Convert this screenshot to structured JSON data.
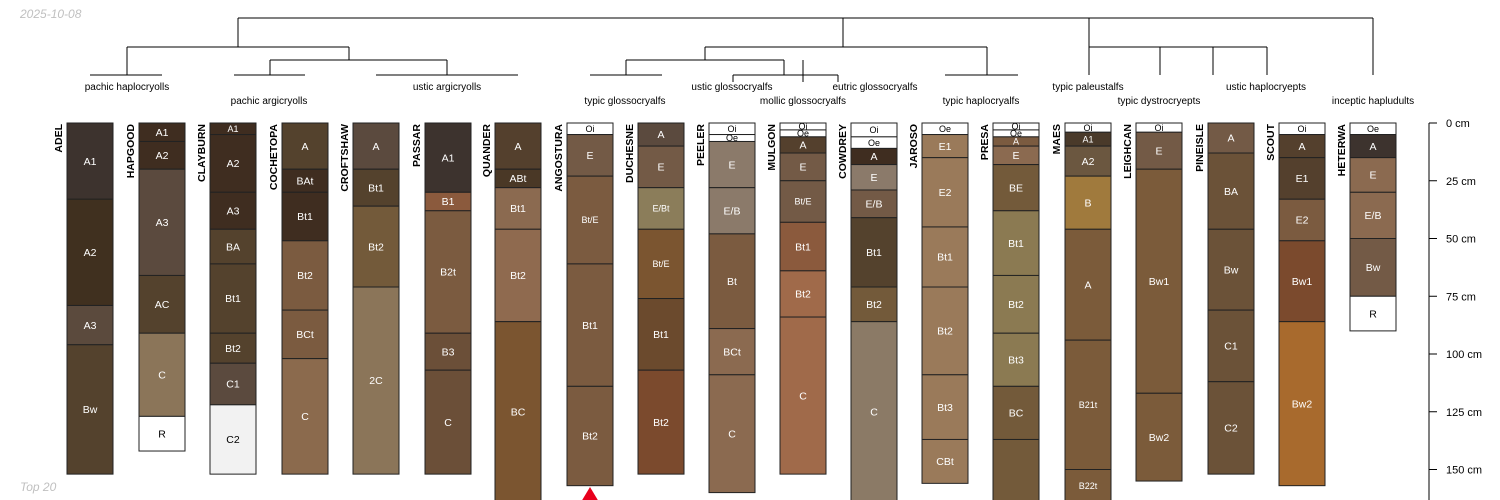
{
  "date_label": "2025-10-08",
  "footer_label": "Top 20",
  "depth_axis": {
    "unit": "cm",
    "ticks": [
      {
        "depth": 0,
        "label": "0 cm"
      },
      {
        "depth": 25,
        "label": "25 cm"
      },
      {
        "depth": 50,
        "label": "50 cm"
      },
      {
        "depth": 75,
        "label": "75 cm"
      },
      {
        "depth": 100,
        "label": "100 cm"
      },
      {
        "depth": 125,
        "label": "125 cm"
      },
      {
        "depth": 150,
        "label": "150 cm"
      }
    ]
  },
  "colors": {
    "line": "#000000",
    "horizon_border": "#222222",
    "marker": "#e8001c"
  },
  "classification_labels": [
    {
      "text": "pachic haplocryolls"
    },
    {
      "text": "pachic argicryolls"
    },
    {
      "text": "ustic argicryolls"
    },
    {
      "text": "typic glossocryalfs"
    },
    {
      "text": "ustic glossocryalfs"
    },
    {
      "text": "mollic glossocryalfs"
    },
    {
      "text": "eutric glossocryalfs"
    },
    {
      "text": "typic haplocryalfs"
    },
    {
      "text": "typic paleustalfs"
    },
    {
      "text": "typic dystrocryepts"
    },
    {
      "text": "ustic haplocryepts"
    },
    {
      "text": "inceptic hapludults"
    }
  ],
  "profiles": [
    {
      "name": "ADEL",
      "horizons": [
        {
          "name": "A1",
          "top": 0,
          "bottom": 33,
          "color": "#3d332e"
        },
        {
          "name": "A2",
          "top": 33,
          "bottom": 79,
          "color": "#40301f"
        },
        {
          "name": "A3",
          "top": 79,
          "bottom": 96,
          "color": "#5b4a3d"
        },
        {
          "name": "Bw",
          "top": 96,
          "bottom": 152,
          "color": "#54422d"
        }
      ]
    },
    {
      "name": "HAPGOOD",
      "horizons": [
        {
          "name": "A1",
          "top": 0,
          "bottom": 8,
          "color": "#3f2d20"
        },
        {
          "name": "A2",
          "top": 8,
          "bottom": 20,
          "color": "#3f2d20"
        },
        {
          "name": "A3",
          "top": 20,
          "bottom": 66,
          "color": "#5b4a3e"
        },
        {
          "name": "AC",
          "top": 66,
          "bottom": 91,
          "color": "#54422d"
        },
        {
          "name": "C",
          "top": 91,
          "bottom": 127,
          "color": "#8b7559"
        },
        {
          "name": "R",
          "top": 127,
          "bottom": 142,
          "color": "#ffffff"
        }
      ]
    },
    {
      "name": "CLAYBURN",
      "horizons": [
        {
          "name": "A1",
          "top": 0,
          "bottom": 5,
          "color": "#3f2d20"
        },
        {
          "name": "A2",
          "top": 5,
          "bottom": 30,
          "color": "#3f2d20"
        },
        {
          "name": "A3",
          "top": 30,
          "bottom": 46,
          "color": "#3f2d20"
        },
        {
          "name": "BA",
          "top": 46,
          "bottom": 61,
          "color": "#54422d"
        },
        {
          "name": "Bt1",
          "top": 61,
          "bottom": 91,
          "color": "#54422d"
        },
        {
          "name": "Bt2",
          "top": 91,
          "bottom": 104,
          "color": "#54422d"
        },
        {
          "name": "C1",
          "top": 104,
          "bottom": 122,
          "color": "#5b4a3e"
        },
        {
          "name": "C2",
          "top": 122,
          "bottom": 152,
          "color": "#f2f2f2"
        }
      ]
    },
    {
      "name": "COCHETOPA",
      "horizons": [
        {
          "name": "A",
          "top": 0,
          "bottom": 20,
          "color": "#54422d"
        },
        {
          "name": "BAt",
          "top": 20,
          "bottom": 30,
          "color": "#3f2d20"
        },
        {
          "name": "Bt1",
          "top": 30,
          "bottom": 51,
          "color": "#3f2d20"
        },
        {
          "name": "Bt2",
          "top": 51,
          "bottom": 81,
          "color": "#7b5b40"
        },
        {
          "name": "BCt",
          "top": 81,
          "bottom": 102,
          "color": "#7b5b40"
        },
        {
          "name": "C",
          "top": 102,
          "bottom": 152,
          "color": "#8b6a4d"
        }
      ]
    },
    {
      "name": "CROFTSHAW",
      "horizons": [
        {
          "name": "A",
          "top": 0,
          "bottom": 20,
          "color": "#5b4a3e"
        },
        {
          "name": "Bt1",
          "top": 20,
          "bottom": 36,
          "color": "#54422d"
        },
        {
          "name": "Bt2",
          "top": 36,
          "bottom": 71,
          "color": "#735a3a"
        },
        {
          "name": "2C",
          "top": 71,
          "bottom": 152,
          "color": "#8b7559"
        }
      ]
    },
    {
      "name": "PASSAR",
      "horizons": [
        {
          "name": "A1",
          "top": 0,
          "bottom": 30,
          "color": "#3d332e"
        },
        {
          "name": "B1",
          "top": 30,
          "bottom": 38,
          "color": "#8b5a3d"
        },
        {
          "name": "B2t",
          "top": 38,
          "bottom": 91,
          "color": "#7b5b40"
        },
        {
          "name": "B3",
          "top": 91,
          "bottom": 107,
          "color": "#6b4f38"
        },
        {
          "name": "C",
          "top": 107,
          "bottom": 152,
          "color": "#6b4f38"
        }
      ]
    },
    {
      "name": "QUANDER",
      "horizons": [
        {
          "name": "A",
          "top": 0,
          "bottom": 20,
          "color": "#54402d"
        },
        {
          "name": "ABt",
          "top": 20,
          "bottom": 28,
          "color": "#4a3826"
        },
        {
          "name": "Bt1",
          "top": 28,
          "bottom": 46,
          "color": "#8b6a50"
        },
        {
          "name": "Bt2",
          "top": 46,
          "bottom": 86,
          "color": "#8f6a4f"
        },
        {
          "name": "BC",
          "top": 86,
          "bottom": 170,
          "color": "#7b5530"
        }
      ]
    },
    {
      "name": "ANGOSTURA",
      "marker": true,
      "horizons": [
        {
          "name": "Oi",
          "top": 0,
          "bottom": 5,
          "color": "#ffffff"
        },
        {
          "name": "E",
          "top": 5,
          "bottom": 23,
          "color": "#735a46"
        },
        {
          "name": "Bt/E",
          "top": 23,
          "bottom": 61,
          "color": "#7b5b40"
        },
        {
          "name": "Bt1",
          "top": 61,
          "bottom": 114,
          "color": "#7b5b40"
        },
        {
          "name": "Bt2",
          "top": 114,
          "bottom": 157,
          "color": "#7b5b40"
        }
      ]
    },
    {
      "name": "DUCHESNE",
      "horizons": [
        {
          "name": "A",
          "top": 0,
          "bottom": 10,
          "color": "#5b4a3e"
        },
        {
          "name": "E",
          "top": 10,
          "bottom": 28,
          "color": "#735a46"
        },
        {
          "name": "E/Bt",
          "top": 28,
          "bottom": 46,
          "color": "#8b7d5a"
        },
        {
          "name": "Bt/E",
          "top": 46,
          "bottom": 76,
          "color": "#7b5530"
        },
        {
          "name": "Bt1",
          "top": 76,
          "bottom": 107,
          "color": "#6b4a2d"
        },
        {
          "name": "Bt2",
          "top": 107,
          "bottom": 152,
          "color": "#7b4a2d"
        }
      ]
    },
    {
      "name": "PEELER",
      "horizons": [
        {
          "name": "Oi",
          "top": 0,
          "bottom": 5,
          "color": "#ffffff"
        },
        {
          "name": "Oe",
          "top": 5,
          "bottom": 8,
          "color": "#ffffff"
        },
        {
          "name": "E",
          "top": 8,
          "bottom": 28,
          "color": "#8b7a6a"
        },
        {
          "name": "E/B",
          "top": 28,
          "bottom": 48,
          "color": "#8b7a6a"
        },
        {
          "name": "Bt",
          "top": 48,
          "bottom": 89,
          "color": "#7b5b40"
        },
        {
          "name": "BCt",
          "top": 89,
          "bottom": 109,
          "color": "#8b6a50"
        },
        {
          "name": "C",
          "top": 109,
          "bottom": 160,
          "color": "#8b6a50"
        }
      ]
    },
    {
      "name": "MULGON",
      "horizons": [
        {
          "name": "Oi",
          "top": 0,
          "bottom": 3,
          "color": "#ffffff"
        },
        {
          "name": "Oe",
          "top": 3,
          "bottom": 6,
          "color": "#ffffff"
        },
        {
          "name": "A",
          "top": 6,
          "bottom": 13,
          "color": "#54402d"
        },
        {
          "name": "E",
          "top": 13,
          "bottom": 25,
          "color": "#735a46"
        },
        {
          "name": "Bt/E",
          "top": 25,
          "bottom": 43,
          "color": "#735a46"
        },
        {
          "name": "Bt1",
          "top": 43,
          "bottom": 64,
          "color": "#8b5a3d"
        },
        {
          "name": "Bt2",
          "top": 64,
          "bottom": 84,
          "color": "#a06a4a"
        },
        {
          "name": "C",
          "top": 84,
          "bottom": 152,
          "color": "#a06a4a"
        }
      ]
    },
    {
      "name": "COWDREY",
      "horizons": [
        {
          "name": "Oi",
          "top": 0,
          "bottom": 6,
          "color": "#ffffff"
        },
        {
          "name": "Oe",
          "top": 6,
          "bottom": 11,
          "color": "#ffffff"
        },
        {
          "name": "A",
          "top": 11,
          "bottom": 18,
          "color": "#3f2d20"
        },
        {
          "name": "E",
          "top": 18,
          "bottom": 29,
          "color": "#8b7a6a"
        },
        {
          "name": "E/B",
          "top": 29,
          "bottom": 41,
          "color": "#735a46"
        },
        {
          "name": "Bt1",
          "top": 41,
          "bottom": 71,
          "color": "#54422d"
        },
        {
          "name": "Bt2",
          "top": 71,
          "bottom": 86,
          "color": "#735a3a"
        },
        {
          "name": "C",
          "top": 86,
          "bottom": 170,
          "color": "#8b7a66"
        }
      ]
    },
    {
      "name": "JAROSO",
      "horizons": [
        {
          "name": "Oe",
          "top": 0,
          "bottom": 5,
          "color": "#ffffff"
        },
        {
          "name": "E1",
          "top": 5,
          "bottom": 15,
          "color": "#9a7a5a"
        },
        {
          "name": "E2",
          "top": 15,
          "bottom": 45,
          "color": "#9a7a5a"
        },
        {
          "name": "Bt1",
          "top": 45,
          "bottom": 71,
          "color": "#9a7a5a"
        },
        {
          "name": "Bt2",
          "top": 71,
          "bottom": 109,
          "color": "#9a7a5a"
        },
        {
          "name": "Bt3",
          "top": 109,
          "bottom": 137,
          "color": "#9a7a5a"
        },
        {
          "name": "CBt",
          "top": 137,
          "bottom": 156,
          "color": "#9a7a5a"
        }
      ]
    },
    {
      "name": "PRESA",
      "horizons": [
        {
          "name": "Oi",
          "top": 0,
          "bottom": 3,
          "color": "#ffffff"
        },
        {
          "name": "Oe",
          "top": 3,
          "bottom": 6,
          "color": "#ffffff"
        },
        {
          "name": "A",
          "top": 6,
          "bottom": 10,
          "color": "#7b5b40"
        },
        {
          "name": "E",
          "top": 10,
          "bottom": 18,
          "color": "#8b6a50"
        },
        {
          "name": "BE",
          "top": 18,
          "bottom": 38,
          "color": "#735a3a"
        },
        {
          "name": "Bt1",
          "top": 38,
          "bottom": 66,
          "color": "#8b7a52"
        },
        {
          "name": "Bt2",
          "top": 66,
          "bottom": 91,
          "color": "#8b7a52"
        },
        {
          "name": "Bt3",
          "top": 91,
          "bottom": 114,
          "color": "#8b7a52"
        },
        {
          "name": "BC",
          "top": 114,
          "bottom": 137,
          "color": "#735a3a"
        },
        {
          "name": "",
          "top": 137,
          "bottom": 170,
          "color": "#735a3a"
        }
      ]
    },
    {
      "name": "MAES",
      "horizons": [
        {
          "name": "Oi",
          "top": 0,
          "bottom": 4,
          "color": "#ffffff"
        },
        {
          "name": "A1",
          "top": 4,
          "bottom": 10,
          "color": "#4a3a2a"
        },
        {
          "name": "A2",
          "top": 10,
          "bottom": 23,
          "color": "#6b5740"
        },
        {
          "name": "B",
          "top": 23,
          "bottom": 46,
          "color": "#a07a3d"
        },
        {
          "name": "A",
          "top": 46,
          "bottom": 94,
          "color": "#7b5b3a"
        },
        {
          "name": "B21t",
          "top": 94,
          "bottom": 150,
          "color": "#7b5b3a"
        },
        {
          "name": "B22t",
          "top": 150,
          "bottom": 170,
          "color": "#7b5b3a"
        }
      ]
    },
    {
      "name": "LEIGHCAN",
      "horizons": [
        {
          "name": "Oi",
          "top": 0,
          "bottom": 4,
          "color": "#ffffff"
        },
        {
          "name": "E",
          "top": 4,
          "bottom": 20,
          "color": "#735a46"
        },
        {
          "name": "Bw1",
          "top": 20,
          "bottom": 117,
          "color": "#7b5b3a"
        },
        {
          "name": "Bw2",
          "top": 117,
          "bottom": 155,
          "color": "#7b5b3a"
        }
      ]
    },
    {
      "name": "PINEISLE",
      "horizons": [
        {
          "name": "A",
          "top": 0,
          "bottom": 13,
          "color": "#735a46"
        },
        {
          "name": "BA",
          "top": 13,
          "bottom": 46,
          "color": "#6b5238"
        },
        {
          "name": "Bw",
          "top": 46,
          "bottom": 81,
          "color": "#6b5238"
        },
        {
          "name": "C1",
          "top": 81,
          "bottom": 112,
          "color": "#6b5238"
        },
        {
          "name": "C2",
          "top": 112,
          "bottom": 152,
          "color": "#6b5238"
        }
      ]
    },
    {
      "name": "SCOUT",
      "horizons": [
        {
          "name": "Oi",
          "top": 0,
          "bottom": 5,
          "color": "#ffffff"
        },
        {
          "name": "A",
          "top": 5,
          "bottom": 15,
          "color": "#54402d"
        },
        {
          "name": "E1",
          "top": 15,
          "bottom": 33,
          "color": "#54402d"
        },
        {
          "name": "E2",
          "top": 33,
          "bottom": 51,
          "color": "#7b5b40"
        },
        {
          "name": "Bw1",
          "top": 51,
          "bottom": 86,
          "color": "#7b4a2d"
        },
        {
          "name": "Bw2",
          "top": 86,
          "bottom": 157,
          "color": "#a86a2d"
        }
      ]
    },
    {
      "name": "HETERWA",
      "horizons": [
        {
          "name": "Oe",
          "top": 0,
          "bottom": 5,
          "color": "#ffffff"
        },
        {
          "name": "A",
          "top": 5,
          "bottom": 15,
          "color": "#3d332e"
        },
        {
          "name": "E",
          "top": 15,
          "bottom": 30,
          "color": "#8b6a50"
        },
        {
          "name": "E/B",
          "top": 30,
          "bottom": 50,
          "color": "#8b6a50"
        },
        {
          "name": "Bw",
          "top": 50,
          "bottom": 75,
          "color": "#735a46"
        },
        {
          "name": "R",
          "top": 75,
          "bottom": 90,
          "color": "#ffffff"
        }
      ]
    }
  ]
}
